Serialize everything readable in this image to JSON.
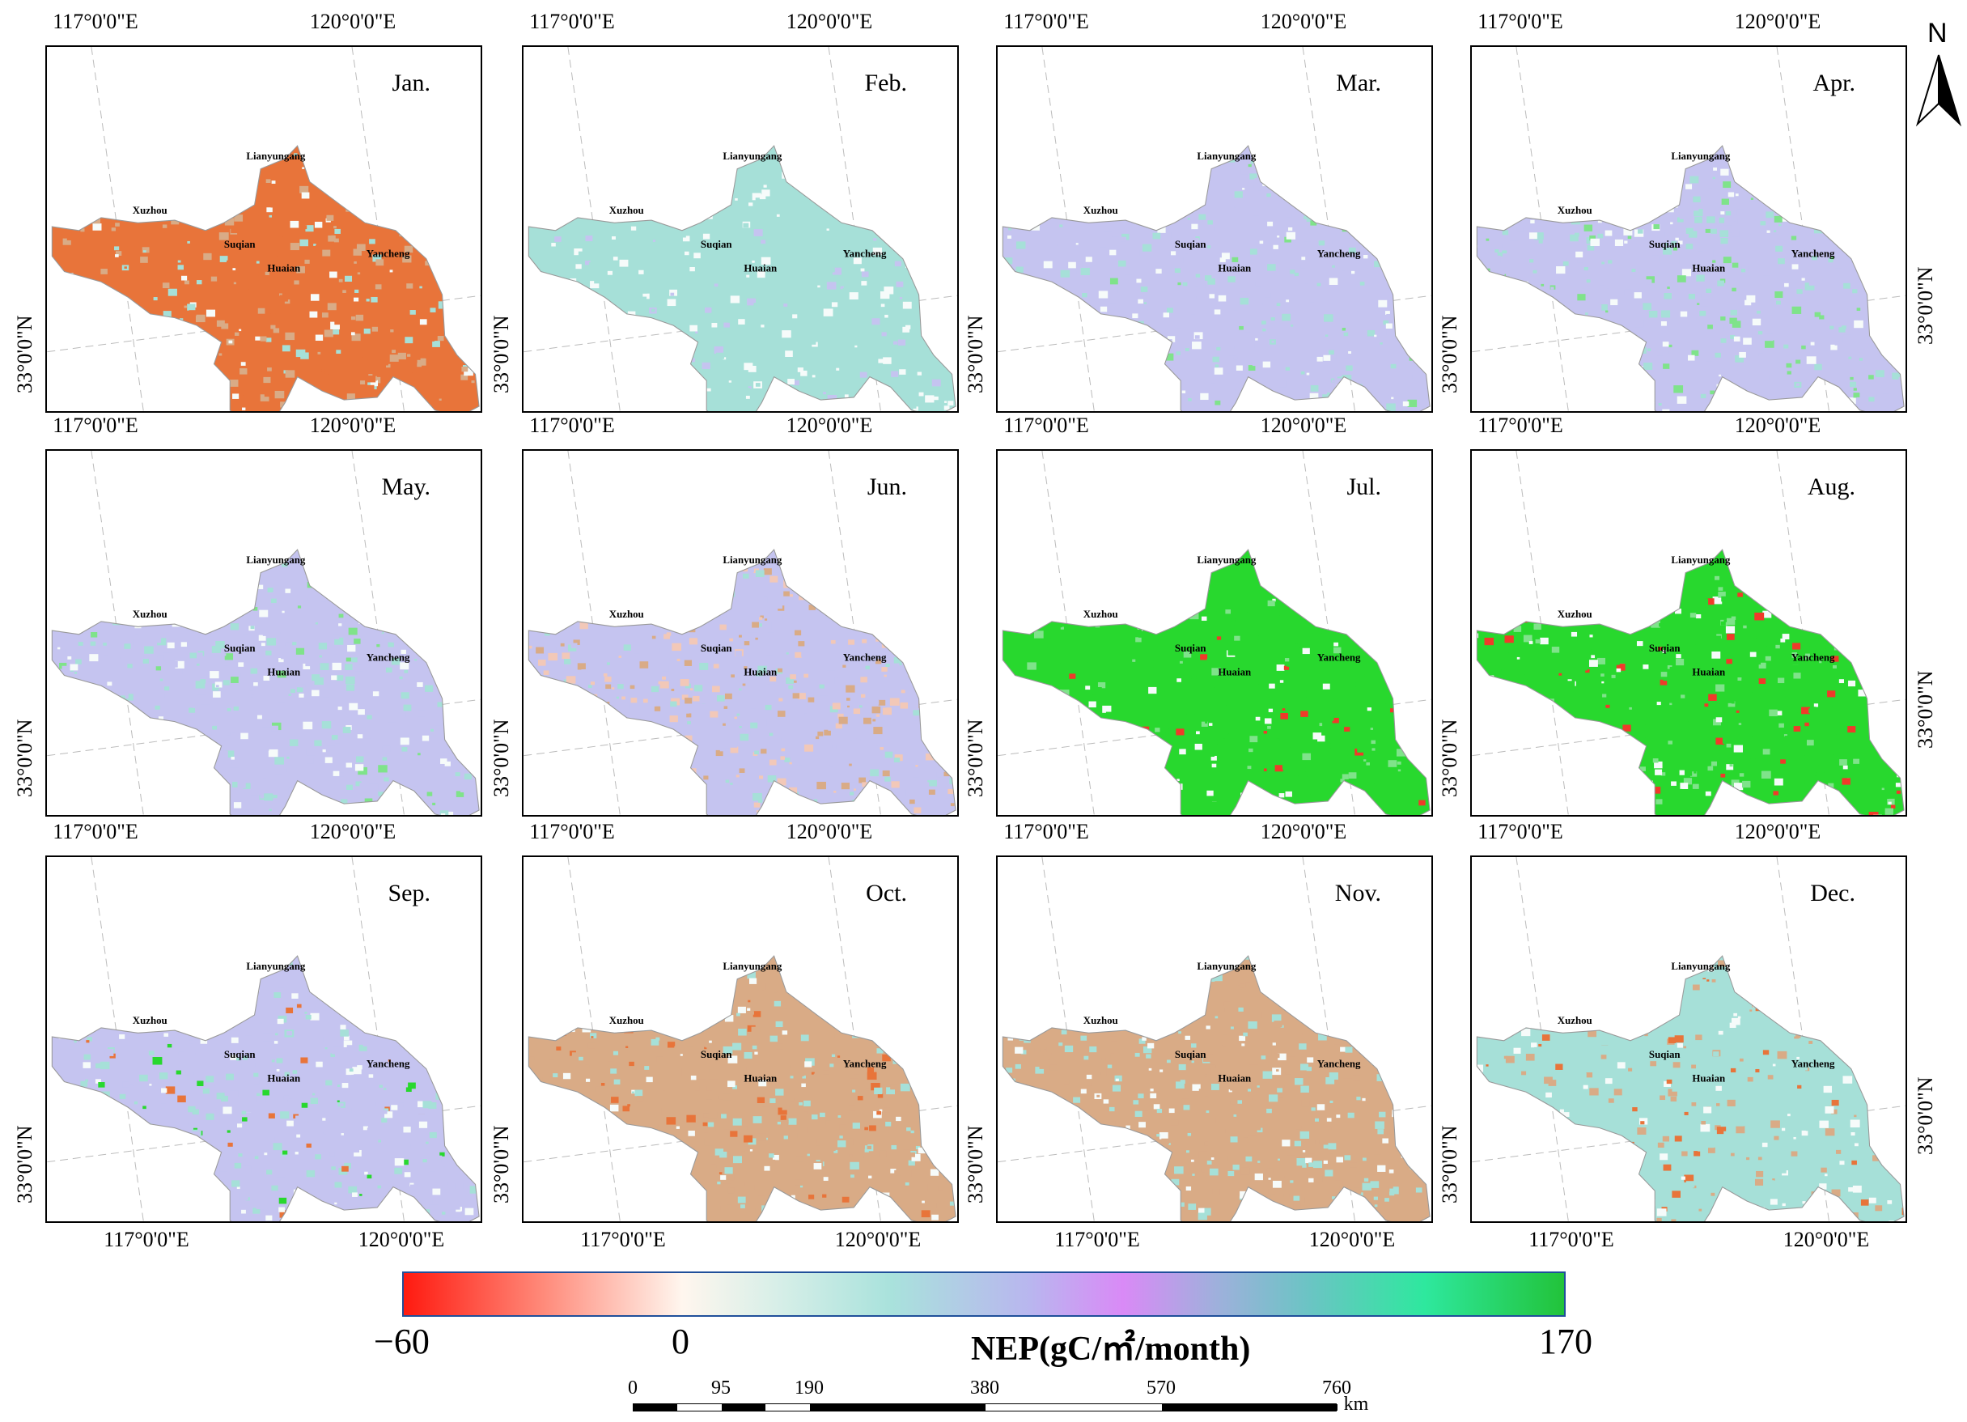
{
  "colors": {
    "orange": "#e8743a",
    "red": "#f03a2a",
    "green": "#28d82e",
    "light_green": "#7fe38a",
    "cyan": "#a6e0d8",
    "lavender": "#c5c4f0",
    "pink": "#f2c8b8",
    "tan": "#d9ab86",
    "white": "#f6fbfa"
  },
  "axis_labels": {
    "lon_117": "117°0'0\"E",
    "lon_120": "120°0'0\"E",
    "lat_33": "33°0'0\"N"
  },
  "cities": {
    "lianyungang": "Lianyungang",
    "xuzhou": "Xuzhou",
    "suqian": "Suqian",
    "huaian": "Huaian",
    "yancheng": "Yancheng"
  },
  "months": [
    {
      "name": "Jan.",
      "pattern": "orange"
    },
    {
      "name": "Feb.",
      "pattern": "cyan"
    },
    {
      "name": "Mar.",
      "pattern": "lavender"
    },
    {
      "name": "Apr.",
      "pattern": "mixlav"
    },
    {
      "name": "May.",
      "pattern": "lavender"
    },
    {
      "name": "Jun.",
      "pattern": "mixorange"
    },
    {
      "name": "Jul.",
      "pattern": "green"
    },
    {
      "name": "Aug.",
      "pattern": "green2"
    },
    {
      "name": "Sep.",
      "pattern": "sep"
    },
    {
      "name": "Oct.",
      "pattern": "tan"
    },
    {
      "name": "Nov.",
      "pattern": "tan2"
    },
    {
      "name": "Dec.",
      "pattern": "mixcyan"
    }
  ],
  "north": "N",
  "legend": {
    "min": "−60",
    "zero": "0",
    "max": "170",
    "title": "NEP(gC/㎡/month)",
    "min_value": -60,
    "max_value": 170
  },
  "scale_bar": {
    "unit": "km",
    "ticks": [
      "0",
      "95",
      "190",
      "380",
      "570",
      "760"
    ]
  }
}
